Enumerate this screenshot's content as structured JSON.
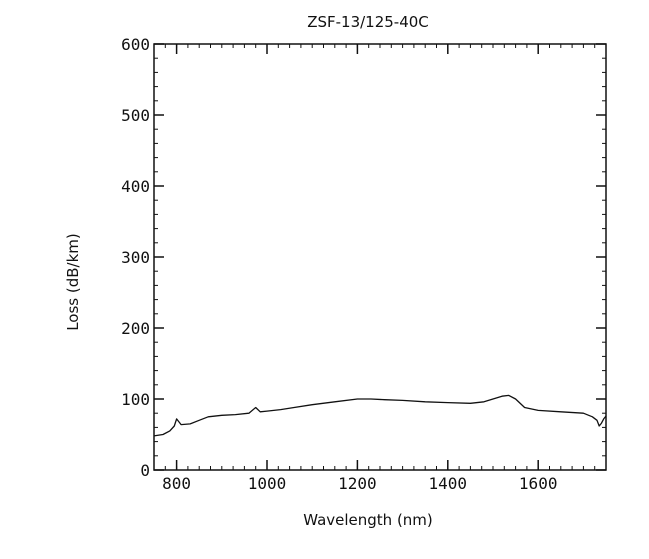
{
  "chart_data": {
    "type": "line",
    "title": "ZSF-13/125-40C",
    "xlabel": "Wavelength (nm)",
    "ylabel": "Loss (dB/km)",
    "xlim": [
      750,
      1750
    ],
    "ylim": [
      0,
      600
    ],
    "xticks": [
      800,
      1000,
      1200,
      1400,
      1600
    ],
    "yticks": [
      0,
      100,
      200,
      300,
      400,
      500,
      600
    ],
    "grid": false,
    "colors": {
      "line": "#111111",
      "frame": "#111111",
      "background": "#ffffff"
    },
    "series": [
      {
        "x": [
          750,
          770,
          785,
          795,
          800,
          810,
          830,
          850,
          870,
          900,
          930,
          960,
          975,
          985,
          1000,
          1030,
          1060,
          1100,
          1150,
          1200,
          1230,
          1260,
          1300,
          1350,
          1400,
          1450,
          1480,
          1500,
          1520,
          1535,
          1550,
          1570,
          1600,
          1650,
          1700,
          1720,
          1730,
          1735,
          1740,
          1745,
          1750
        ],
        "y": [
          48,
          50,
          55,
          62,
          72,
          64,
          65,
          70,
          75,
          77,
          78,
          80,
          88,
          82,
          83,
          85,
          88,
          92,
          96,
          100,
          100,
          99,
          98,
          96,
          95,
          94,
          96,
          100,
          104,
          105,
          100,
          88,
          84,
          82,
          80,
          75,
          70,
          62,
          66,
          72,
          76
        ]
      }
    ]
  }
}
